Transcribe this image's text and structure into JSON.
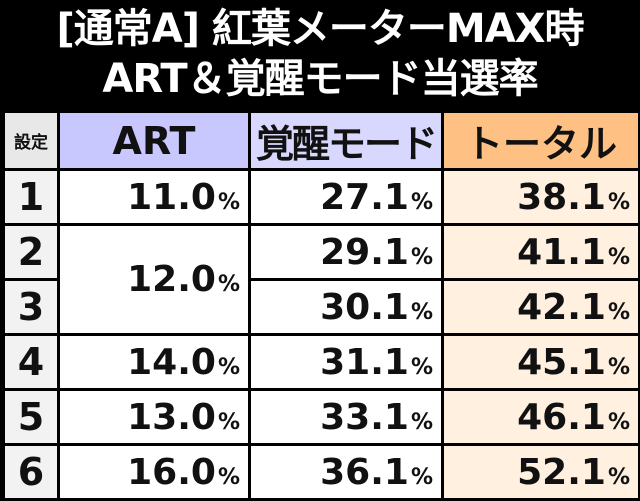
{
  "title": {
    "line1": "[通常A] 紅葉メーターMAX時",
    "line2": "ART＆覚醒モード当選率"
  },
  "table": {
    "headers": {
      "setting": "設定",
      "art": "ART",
      "kakusei": "覚醒モード",
      "total": "トータル"
    },
    "percent_unit": "%",
    "rows": [
      {
        "setting": "1",
        "art": "11.0",
        "kakusei": "27.1",
        "total": "38.1"
      },
      {
        "setting": "2",
        "art": "12.0",
        "kakusei": "29.1",
        "total": "41.1"
      },
      {
        "setting": "3",
        "art": "12.0",
        "kakusei": "30.1",
        "total": "42.1"
      },
      {
        "setting": "4",
        "art": "14.0",
        "kakusei": "31.1",
        "total": "45.1"
      },
      {
        "setting": "5",
        "art": "13.0",
        "kakusei": "33.1",
        "total": "46.1"
      },
      {
        "setting": "6",
        "art": "16.0",
        "kakusei": "36.1",
        "total": "52.1"
      }
    ]
  },
  "colors": {
    "background": "#000000",
    "header_art": "#c8c8ff",
    "header_kakusei": "#d8d8ff",
    "header_total": "#ffc084",
    "total_cells": "#fff0e0",
    "setting_cells": "#f2f2f2"
  }
}
